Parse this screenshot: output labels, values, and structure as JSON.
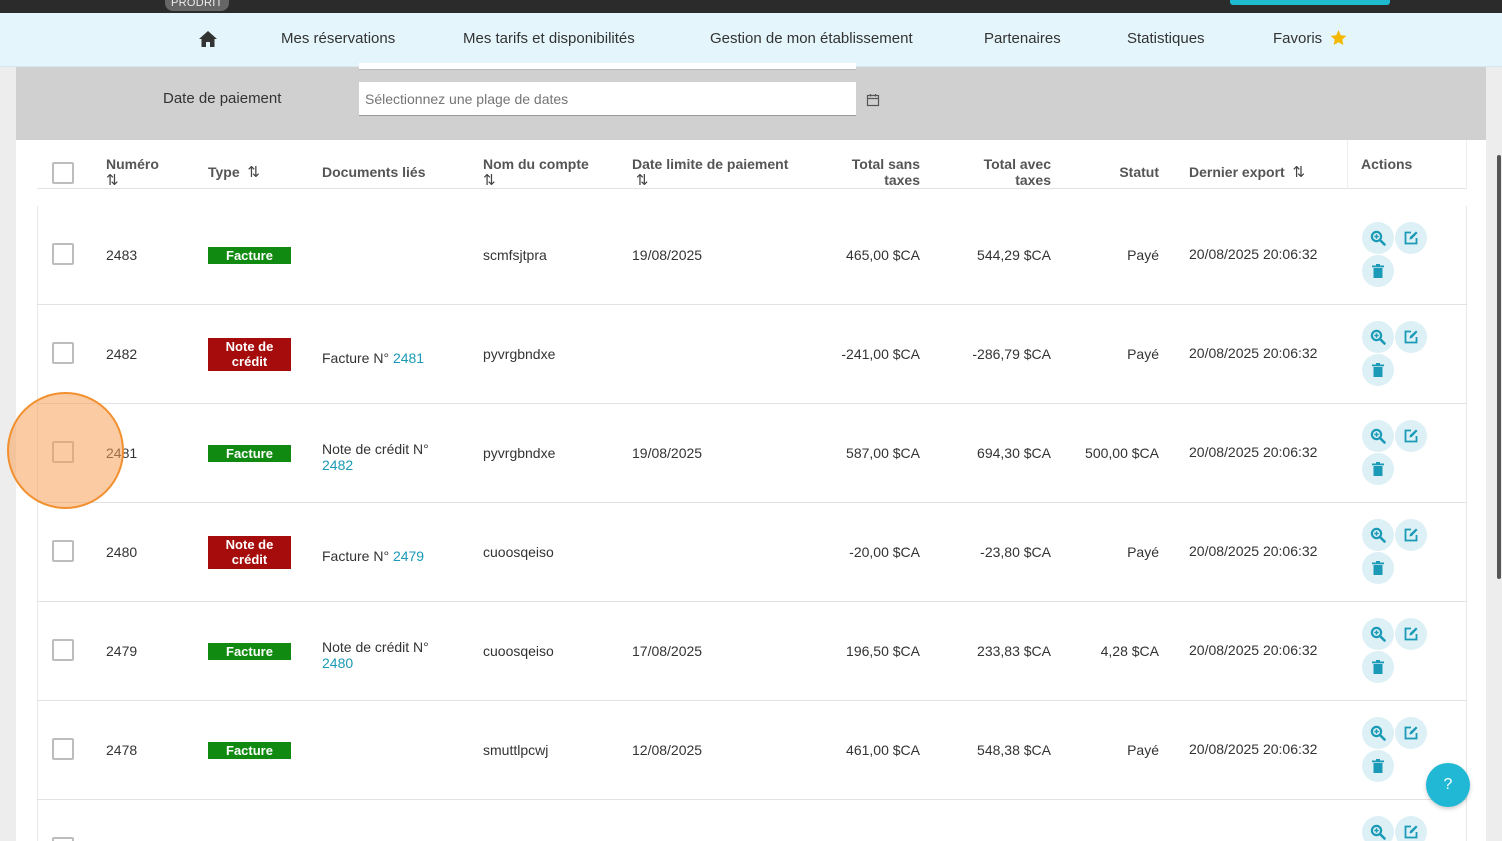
{
  "header": {
    "env_badge": "PRODRIT"
  },
  "nav": {
    "items": [
      {
        "label": "Mes réservations"
      },
      {
        "label": "Mes tarifs et disponibilités"
      },
      {
        "label": "Gestion de mon établissement"
      },
      {
        "label": "Partenaires"
      },
      {
        "label": "Statistiques"
      },
      {
        "label": "Favoris"
      }
    ],
    "favorite_star_color": "#f5b800",
    "home_icon": "home-icon"
  },
  "filter": {
    "date_label": "Date de paiement",
    "date_placeholder": "Sélectionnez une plage de dates"
  },
  "table": {
    "columns": {
      "numero": "Numéro",
      "type": "Type",
      "documents": "Documents liés",
      "account": "Nom du compte",
      "due_date": "Date limite de paiement",
      "total_sans_1": "Total sans",
      "total_sans_2": "taxes",
      "total_avec_1": "Total avec",
      "total_avec_2": "taxes",
      "status": "Statut",
      "last_export": "Dernier export",
      "actions": "Actions"
    },
    "sort_glyph": "⇅",
    "rows": [
      {
        "numero": "2483",
        "type": "Facture",
        "doc_prefix": "",
        "doc_link": "",
        "account": "scmfsjtpra",
        "due_date": "19/08/2025",
        "total_sans": "465,00 $CA",
        "total_avec": "544,29 $CA",
        "status": "Payé",
        "last_export": "20/08/2025 20:06:32"
      },
      {
        "numero": "2482",
        "type_1": "Note de",
        "type_2": "crédit",
        "doc_prefix": "Facture N°",
        "doc_link": "2481",
        "account": "pyvrgbndxe",
        "due_date": "",
        "total_sans": "-241,00 $CA",
        "total_avec": "-286,79 $CA",
        "status": "Payé",
        "last_export": "20/08/2025 20:06:32"
      },
      {
        "numero": "2481",
        "type": "Facture",
        "doc_prefix": "Note de crédit N°",
        "doc_link": "2482",
        "account": "pyvrgbndxe",
        "due_date": "19/08/2025",
        "total_sans": "587,00 $CA",
        "total_avec": "694,30 $CA",
        "status": "500,00 $CA",
        "last_export": "20/08/2025 20:06:32"
      },
      {
        "numero": "2480",
        "type_1": "Note de",
        "type_2": "crédit",
        "doc_prefix": "Facture N°",
        "doc_link": "2479",
        "account": "cuoosqeiso",
        "due_date": "",
        "total_sans": "-20,00 $CA",
        "total_avec": "-23,80 $CA",
        "status": "Payé",
        "last_export": "20/08/2025 20:06:32"
      },
      {
        "numero": "2479",
        "type": "Facture",
        "doc_prefix": "Note de crédit N°",
        "doc_link": "2480",
        "account": "cuoosqeiso",
        "due_date": "17/08/2025",
        "total_sans": "196,50 $CA",
        "total_avec": "233,83 $CA",
        "status": "4,28 $CA",
        "last_export": "20/08/2025 20:06:32"
      },
      {
        "numero": "2478",
        "type": "Facture",
        "doc_prefix": "",
        "doc_link": "",
        "account": "smuttlpcwj",
        "due_date": "12/08/2025",
        "total_sans": "461,00 $CA",
        "total_avec": "548,38 $CA",
        "status": "Payé",
        "last_export": "20/08/2025 20:06:32"
      }
    ]
  },
  "help": {
    "label": "?"
  },
  "colors": {
    "accent": "#20b8d4",
    "facture_badge": "#108a10",
    "note_badge": "#a60c0c",
    "link": "#1a9ab6"
  }
}
